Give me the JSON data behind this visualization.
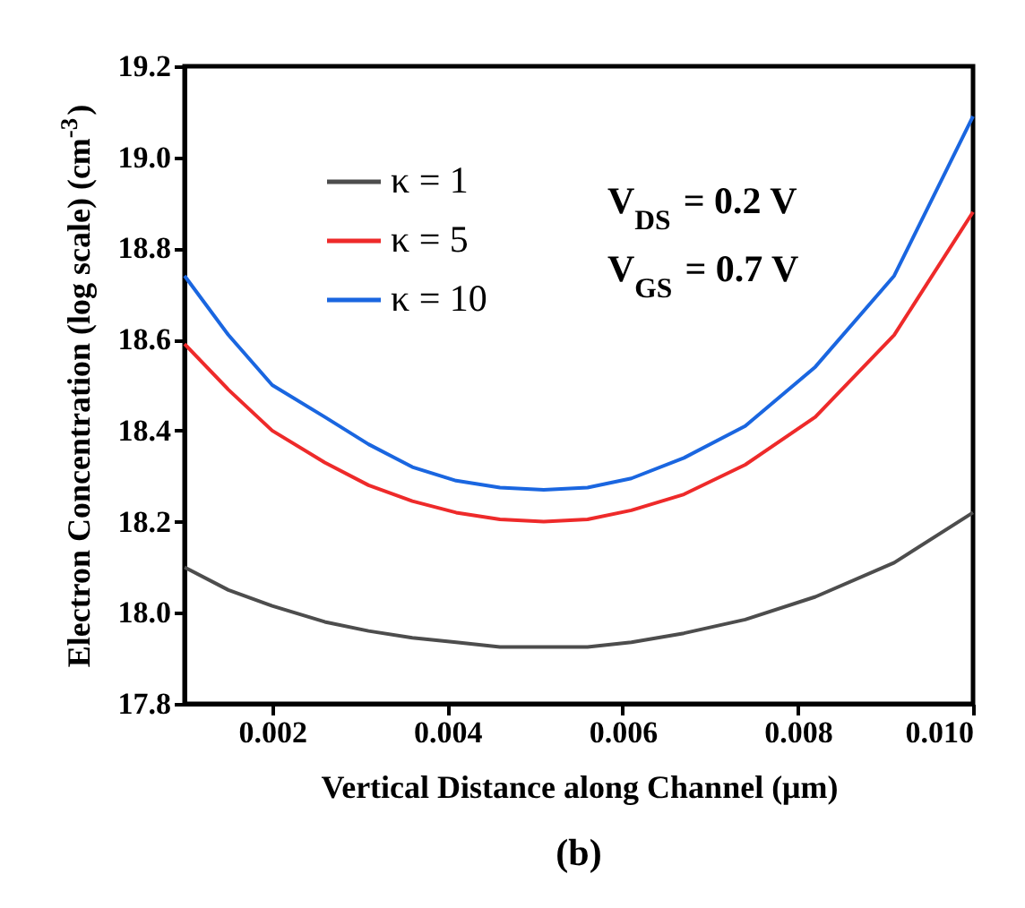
{
  "chart_data": {
    "type": "line",
    "xlabel": "Vertical Distance along Channel (μm)",
    "ylabel": "Electron Concentration (log scale) (cm$^{-3}$)",
    "x": [
      0.001,
      0.0015,
      0.002,
      0.0026,
      0.0031,
      0.0036,
      0.0041,
      0.0046,
      0.0051,
      0.0056,
      0.0061,
      0.0067,
      0.0074,
      0.0082,
      0.0091,
      0.01
    ],
    "series": [
      {
        "name": "κ = 1",
        "color": "#4d4d4d",
        "values": [
          18.1,
          18.05,
          18.015,
          17.98,
          17.96,
          17.945,
          17.935,
          17.925,
          17.925,
          17.925,
          17.935,
          17.955,
          17.985,
          18.035,
          18.11,
          18.22
        ]
      },
      {
        "name": "κ = 5",
        "color": "#ee2a2a",
        "values": [
          18.59,
          18.49,
          18.4,
          18.33,
          18.28,
          18.245,
          18.22,
          18.205,
          18.2,
          18.205,
          18.225,
          18.26,
          18.325,
          18.43,
          18.61,
          18.88
        ]
      },
      {
        "name": "κ = 10",
        "color": "#1a66e0",
        "values": [
          18.74,
          18.61,
          18.5,
          18.43,
          18.37,
          18.32,
          18.29,
          18.275,
          18.27,
          18.275,
          18.295,
          18.34,
          18.41,
          18.54,
          18.74,
          19.09
        ]
      }
    ],
    "xlim": [
      0.001,
      0.01
    ],
    "xticks": [
      0.002,
      0.004,
      0.006,
      0.008,
      {
        "value": 0.01,
        "label": "0.010"
      }
    ],
    "ylim": [
      17.8,
      19.2
    ],
    "yticks": [
      17.8,
      {
        "value": 18,
        "label": "18.0"
      },
      18.2,
      18.4,
      18.6,
      18.8,
      {
        "value": 19,
        "label": "19.0"
      },
      19.2
    ],
    "annotations": [
      "V$_{DS}$ = 0.2 V",
      "V$_{GS}$ = 0.7 V",
      "(b)"
    ],
    "legend": "top left",
    "grid": false,
    "marker": "none",
    "line_style": "solid"
  }
}
